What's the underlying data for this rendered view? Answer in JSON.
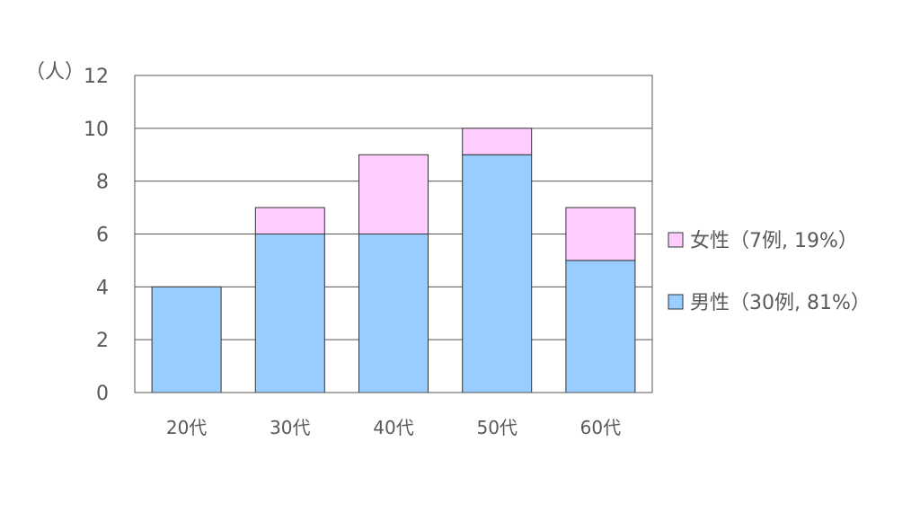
{
  "chart_data": {
    "type": "bar",
    "stacked": true,
    "categories": [
      "20代",
      "30代",
      "40代",
      "50代",
      "60代"
    ],
    "series": [
      {
        "name": "男性（30例, 81%）",
        "color": "#99ccff",
        "values": [
          4,
          6,
          6,
          9,
          5
        ]
      },
      {
        "name": "女性（7例, 19%）",
        "color": "#ffccff",
        "values": [
          0,
          1,
          3,
          1,
          2
        ]
      }
    ],
    "ylabel": "（人）",
    "ylim": [
      0,
      12
    ],
    "yticks": [
      0,
      2,
      4,
      6,
      8,
      10,
      12
    ],
    "grid": true,
    "legend_position": "right"
  }
}
